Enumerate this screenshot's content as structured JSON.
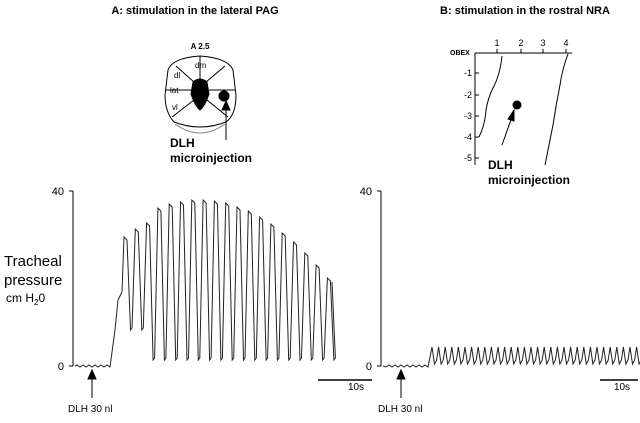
{
  "y_label": [
    "Tracheal",
    "pressure"
  ],
  "y_unit": [
    "cm H",
    "2",
    "0"
  ],
  "panels": [
    {
      "title": "A: stimulation in the lateral PAG",
      "diagram": {
        "level": "A 2.5",
        "regions": [
          "dm",
          "dl",
          "lat",
          "vl"
        ],
        "annotation": [
          "DLH",
          "microinjection"
        ]
      },
      "y_ticks": [
        "40",
        "0"
      ],
      "stimulus": "DLH 30 nl",
      "scale_bar": "10s"
    },
    {
      "title": "B: stimulation in the rostral NRA",
      "diagram": {
        "origin": "OBEX",
        "x_ticks": [
          "1",
          "2",
          "3",
          "4"
        ],
        "y_ticks": [
          "-1",
          "-2",
          "-3",
          "-4",
          "-5"
        ],
        "annotation": [
          "DLH",
          "microinjection"
        ]
      },
      "y_ticks": [
        "40",
        "0"
      ],
      "stimulus": "DLH 30 nl",
      "scale_bar": "10s"
    }
  ]
}
